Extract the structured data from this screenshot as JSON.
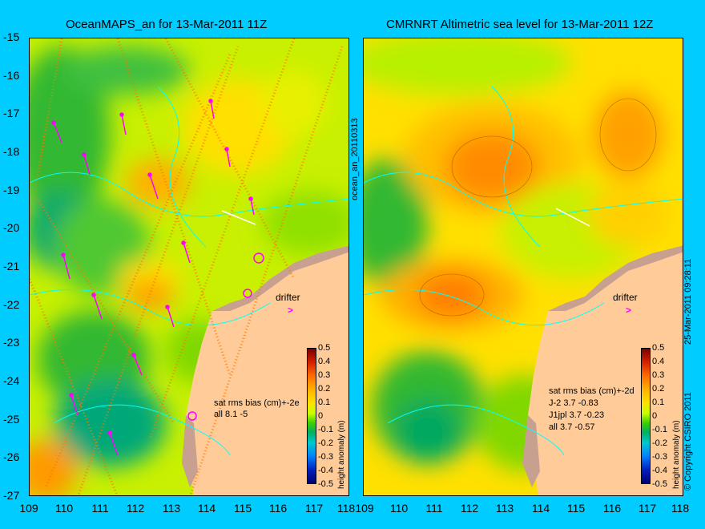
{
  "titles": {
    "left": "OceanMAPS_an for 13-Mar-2011 11Z",
    "right": "CMRNRT Altimetric sea level  for 13-Mar-2011 12Z"
  },
  "axes": {
    "lat_labels": [
      "-15",
      "-16",
      "-17",
      "-18",
      "-19",
      "-20",
      "-21",
      "-22",
      "-23",
      "-24",
      "-25",
      "-26",
      "-27"
    ],
    "lon_labels": [
      "109",
      "110",
      "111",
      "112",
      "113",
      "114",
      "115",
      "116",
      "117",
      "118"
    ]
  },
  "vertical_labels": {
    "run_id": "ocean_an_20110313",
    "timestamp": "25-Mar-2011 09:28:11",
    "copyright": "© Copyright CSIRO 2011"
  },
  "colorbar": {
    "label": "height anomaly (m)",
    "ticks": [
      "0.5",
      "0.4",
      "0.3",
      "0.2",
      "0.1",
      "0",
      "-0.1",
      "-0.2",
      "-0.3",
      "-0.4",
      "-0.5"
    ]
  },
  "left_stats": {
    "header": "sat rms bias (cm)+-2e",
    "rows": [
      "all 8.1 -5"
    ]
  },
  "right_stats": {
    "header": "sat rms bias (cm)+-2d",
    "rows": [
      "J-2   3.7 -0.83",
      "J1jpl  3.7 -0.23",
      "all 3.7 -0.57"
    ]
  },
  "drifter_label": "drifter",
  "drifter_marker": ">",
  "colors": {
    "background": "#00ccff",
    "land": "#ffcc99",
    "arrows": "#ff00ff",
    "coast": "#00ffff"
  }
}
